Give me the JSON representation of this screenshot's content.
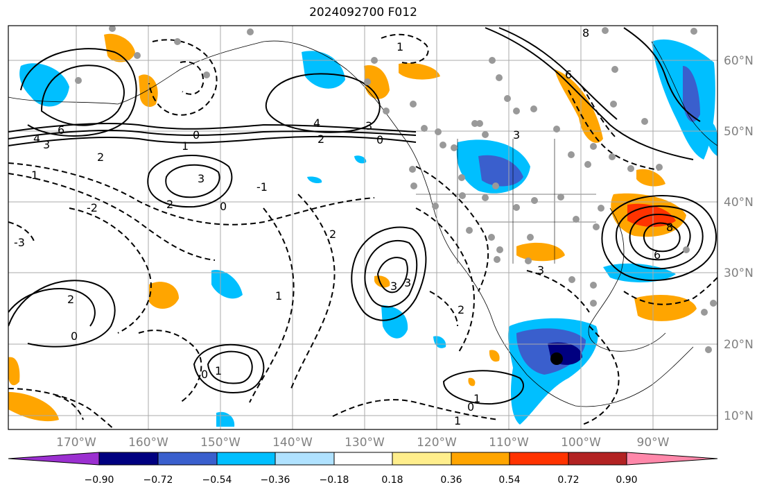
{
  "title": "2024092700 F012",
  "lon_labels": [
    "170°W",
    "160°W",
    "150°W",
    "140°W",
    "130°W",
    "120°W",
    "110°W",
    "100°W",
    "90°W"
  ],
  "lat_labels": [
    "10°N",
    "20°N",
    "30°N",
    "40°N",
    "50°N",
    "60°N"
  ],
  "colorbar": {
    "ticks": [
      "−0.90",
      "−0.72",
      "−0.54",
      "−0.36",
      "−0.18",
      "0.18",
      "0.36",
      "0.54",
      "0.72",
      "0.90"
    ],
    "colors": [
      "#9b30d0",
      "#000080",
      "#3a5fcd",
      "#00bfff",
      "#b0e2ff",
      "#ffffff",
      "#ffee8c",
      "#ffa500",
      "#ff3300",
      "#b22222",
      "#ff88aa"
    ]
  },
  "contour_labels": [
    "6",
    "4",
    "3",
    "2",
    "1",
    "0",
    "1",
    "2",
    "3",
    "-1",
    "-2",
    "-3",
    "0",
    "4",
    "3",
    "2",
    "0",
    "6",
    "8",
    "1",
    "3",
    "2",
    "3",
    "1",
    "2",
    "0",
    "3",
    "2",
    "1",
    "0",
    "1",
    "1",
    "0",
    "8",
    "6",
    "3"
  ],
  "colors": {
    "grid": "#aaaaaa",
    "axis_label": "#808080",
    "contour": "#000000",
    "station": "#999999"
  }
}
